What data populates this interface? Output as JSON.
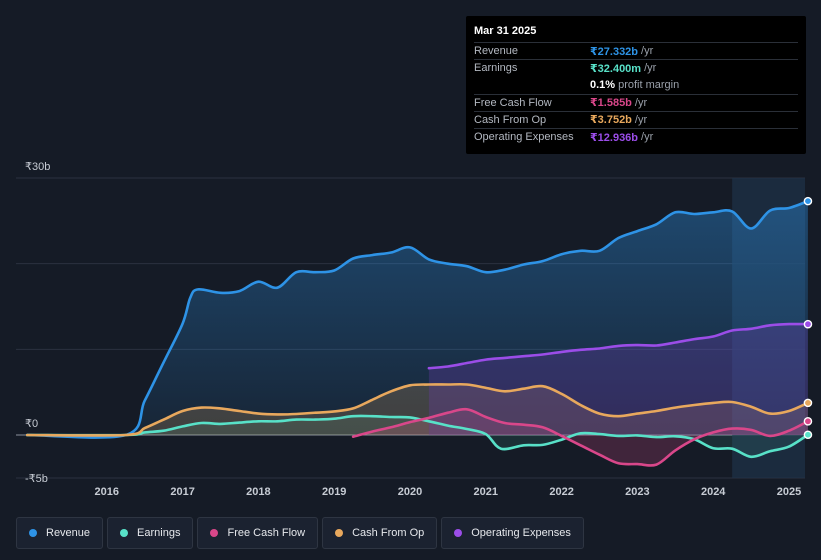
{
  "tooltip": {
    "date": "Mar 31 2025",
    "rows": [
      {
        "label": "Revenue",
        "value": "₹27.332b",
        "unit": "/yr",
        "color": "#2e93e6"
      },
      {
        "label": "Earnings",
        "value": "₹32.400m",
        "unit": "/yr",
        "color": "#58e1c8"
      },
      {
        "label": "",
        "value": "0.1%",
        "unit": "profit margin",
        "color": "#ffffff"
      },
      {
        "label": "Free Cash Flow",
        "value": "₹1.585b",
        "unit": "/yr",
        "color": "#d9478a"
      },
      {
        "label": "Cash From Op",
        "value": "₹3.752b",
        "unit": "/yr",
        "color": "#e8a85d"
      },
      {
        "label": "Operating Expenses",
        "value": "₹12.936b",
        "unit": "/yr",
        "color": "#9b4de8"
      }
    ]
  },
  "legend": [
    {
      "label": "Revenue",
      "color": "#2e93e6"
    },
    {
      "label": "Earnings",
      "color": "#58e1c8"
    },
    {
      "label": "Free Cash Flow",
      "color": "#d9478a"
    },
    {
      "label": "Cash From Op",
      "color": "#e8a85d"
    },
    {
      "label": "Operating Expenses",
      "color": "#9b4de8"
    }
  ],
  "chart_data": {
    "type": "area",
    "title": "",
    "xlabel": "",
    "ylabel": "",
    "currency": "₹",
    "y_unit": "b",
    "ylim": [
      -5,
      30
    ],
    "xlim": [
      2015.0,
      2025.25
    ],
    "y_tick_labels": [
      {
        "value": 30,
        "label": "₹30b"
      },
      {
        "value": 0,
        "label": "₹0"
      },
      {
        "value": -5,
        "label": "-₹5b"
      }
    ],
    "y_gridlines": [
      30,
      20,
      10,
      0
    ],
    "x_ticks": [
      2016,
      2017,
      2018,
      2019,
      2020,
      2021,
      2022,
      2023,
      2024,
      2025
    ],
    "x_tick_labels": [
      "2016",
      "2017",
      "2018",
      "2019",
      "2020",
      "2021",
      "2022",
      "2023",
      "2024",
      "2025"
    ],
    "highlight_range": [
      2024.25,
      2025.25
    ],
    "series": [
      {
        "name": "Revenue",
        "color": "#2e93e6",
        "points": [
          [
            2014.95,
            0
          ],
          [
            2016.25,
            0
          ],
          [
            2016.5,
            4
          ],
          [
            2016.75,
            8.5
          ],
          [
            2017.0,
            13
          ],
          [
            2017.1,
            16
          ],
          [
            2017.2,
            17
          ],
          [
            2017.5,
            16.6
          ],
          [
            2017.75,
            16.8
          ],
          [
            2018.0,
            17.9
          ],
          [
            2018.25,
            17.2
          ],
          [
            2018.5,
            19.0
          ],
          [
            2018.75,
            19.0
          ],
          [
            2019.0,
            19.2
          ],
          [
            2019.25,
            20.6
          ],
          [
            2019.5,
            21.0
          ],
          [
            2019.75,
            21.3
          ],
          [
            2020.0,
            21.9
          ],
          [
            2020.25,
            20.5
          ],
          [
            2020.5,
            20.0
          ],
          [
            2020.75,
            19.7
          ],
          [
            2021.0,
            19.0
          ],
          [
            2021.25,
            19.3
          ],
          [
            2021.5,
            19.9
          ],
          [
            2021.75,
            20.3
          ],
          [
            2022.0,
            21.1
          ],
          [
            2022.25,
            21.5
          ],
          [
            2022.5,
            21.5
          ],
          [
            2022.75,
            23.0
          ],
          [
            2023.0,
            23.8
          ],
          [
            2023.25,
            24.6
          ],
          [
            2023.5,
            26.0
          ],
          [
            2023.75,
            25.8
          ],
          [
            2024.0,
            26.0
          ],
          [
            2024.25,
            26.1
          ],
          [
            2024.5,
            24.1
          ],
          [
            2024.75,
            26.2
          ],
          [
            2025.0,
            26.5
          ],
          [
            2025.25,
            27.3
          ]
        ]
      },
      {
        "name": "Earnings",
        "color": "#58e1c8",
        "points": [
          [
            2014.95,
            0
          ],
          [
            2016.25,
            0
          ],
          [
            2016.5,
            0.3
          ],
          [
            2016.75,
            0.5
          ],
          [
            2017.0,
            1.0
          ],
          [
            2017.25,
            1.4
          ],
          [
            2017.5,
            1.3
          ],
          [
            2017.75,
            1.45
          ],
          [
            2018.0,
            1.6
          ],
          [
            2018.25,
            1.6
          ],
          [
            2018.5,
            1.8
          ],
          [
            2018.75,
            1.8
          ],
          [
            2019.0,
            1.9
          ],
          [
            2019.25,
            2.2
          ],
          [
            2019.5,
            2.2
          ],
          [
            2019.75,
            2.1
          ],
          [
            2020.0,
            2.05
          ],
          [
            2020.25,
            1.6
          ],
          [
            2020.5,
            1.1
          ],
          [
            2020.75,
            0.7
          ],
          [
            2021.0,
            0.1
          ],
          [
            2021.2,
            -1.6
          ],
          [
            2021.5,
            -1.2
          ],
          [
            2021.75,
            -1.15
          ],
          [
            2022.0,
            -0.55
          ],
          [
            2022.25,
            0.2
          ],
          [
            2022.5,
            0.1
          ],
          [
            2022.75,
            -0.1
          ],
          [
            2023.0,
            -0.05
          ],
          [
            2023.25,
            -0.25
          ],
          [
            2023.5,
            -0.15
          ],
          [
            2023.75,
            -0.5
          ],
          [
            2024.0,
            -1.55
          ],
          [
            2024.25,
            -1.6
          ],
          [
            2024.5,
            -2.55
          ],
          [
            2024.75,
            -1.9
          ],
          [
            2025.0,
            -1.35
          ],
          [
            2025.25,
            0.03
          ]
        ]
      },
      {
        "name": "Free Cash Flow",
        "color": "#d9478a",
        "points": [
          [
            2019.25,
            -0.2
          ],
          [
            2019.5,
            0.4
          ],
          [
            2019.75,
            0.9
          ],
          [
            2020.0,
            1.5
          ],
          [
            2020.25,
            2.0
          ],
          [
            2020.5,
            2.6
          ],
          [
            2020.75,
            3.0
          ],
          [
            2021.0,
            2.1
          ],
          [
            2021.25,
            1.4
          ],
          [
            2021.5,
            1.2
          ],
          [
            2021.75,
            0.9
          ],
          [
            2022.0,
            -0.1
          ],
          [
            2022.25,
            -1.2
          ],
          [
            2022.5,
            -2.3
          ],
          [
            2022.75,
            -3.3
          ],
          [
            2023.0,
            -3.4
          ],
          [
            2023.25,
            -3.45
          ],
          [
            2023.5,
            -1.8
          ],
          [
            2023.75,
            -0.5
          ],
          [
            2024.0,
            0.3
          ],
          [
            2024.25,
            0.75
          ],
          [
            2024.5,
            0.6
          ],
          [
            2024.75,
            -0.1
          ],
          [
            2025.0,
            0.5
          ],
          [
            2025.25,
            1.6
          ]
        ]
      },
      {
        "name": "Cash From Op",
        "color": "#e8a85d",
        "points": [
          [
            2014.95,
            0
          ],
          [
            2016.25,
            0
          ],
          [
            2016.5,
            0.8
          ],
          [
            2016.75,
            1.8
          ],
          [
            2017.0,
            2.8
          ],
          [
            2017.25,
            3.2
          ],
          [
            2017.5,
            3.1
          ],
          [
            2017.75,
            2.8
          ],
          [
            2018.0,
            2.5
          ],
          [
            2018.25,
            2.4
          ],
          [
            2018.5,
            2.45
          ],
          [
            2018.75,
            2.6
          ],
          [
            2019.0,
            2.75
          ],
          [
            2019.25,
            3.1
          ],
          [
            2019.5,
            4.1
          ],
          [
            2019.75,
            5.1
          ],
          [
            2020.0,
            5.8
          ],
          [
            2020.25,
            5.9
          ],
          [
            2020.5,
            5.9
          ],
          [
            2020.75,
            5.9
          ],
          [
            2021.0,
            5.5
          ],
          [
            2021.25,
            5.1
          ],
          [
            2021.5,
            5.4
          ],
          [
            2021.75,
            5.7
          ],
          [
            2022.0,
            4.8
          ],
          [
            2022.25,
            3.5
          ],
          [
            2022.5,
            2.5
          ],
          [
            2022.75,
            2.2
          ],
          [
            2023.0,
            2.5
          ],
          [
            2023.25,
            2.8
          ],
          [
            2023.5,
            3.2
          ],
          [
            2023.75,
            3.5
          ],
          [
            2024.0,
            3.75
          ],
          [
            2024.25,
            3.85
          ],
          [
            2024.5,
            3.3
          ],
          [
            2024.75,
            2.5
          ],
          [
            2025.0,
            2.8
          ],
          [
            2025.25,
            3.75
          ]
        ]
      },
      {
        "name": "Operating Expenses",
        "color": "#9b4de8",
        "points": [
          [
            2020.25,
            7.8
          ],
          [
            2020.5,
            8.0
          ],
          [
            2020.75,
            8.4
          ],
          [
            2021.0,
            8.8
          ],
          [
            2021.25,
            9.0
          ],
          [
            2021.5,
            9.2
          ],
          [
            2021.75,
            9.4
          ],
          [
            2022.0,
            9.7
          ],
          [
            2022.25,
            9.95
          ],
          [
            2022.5,
            10.1
          ],
          [
            2022.75,
            10.4
          ],
          [
            2023.0,
            10.5
          ],
          [
            2023.25,
            10.45
          ],
          [
            2023.5,
            10.8
          ],
          [
            2023.75,
            11.2
          ],
          [
            2024.0,
            11.5
          ],
          [
            2024.25,
            12.2
          ],
          [
            2024.5,
            12.4
          ],
          [
            2024.75,
            12.8
          ],
          [
            2025.0,
            12.95
          ],
          [
            2025.25,
            12.94
          ]
        ]
      }
    ]
  }
}
